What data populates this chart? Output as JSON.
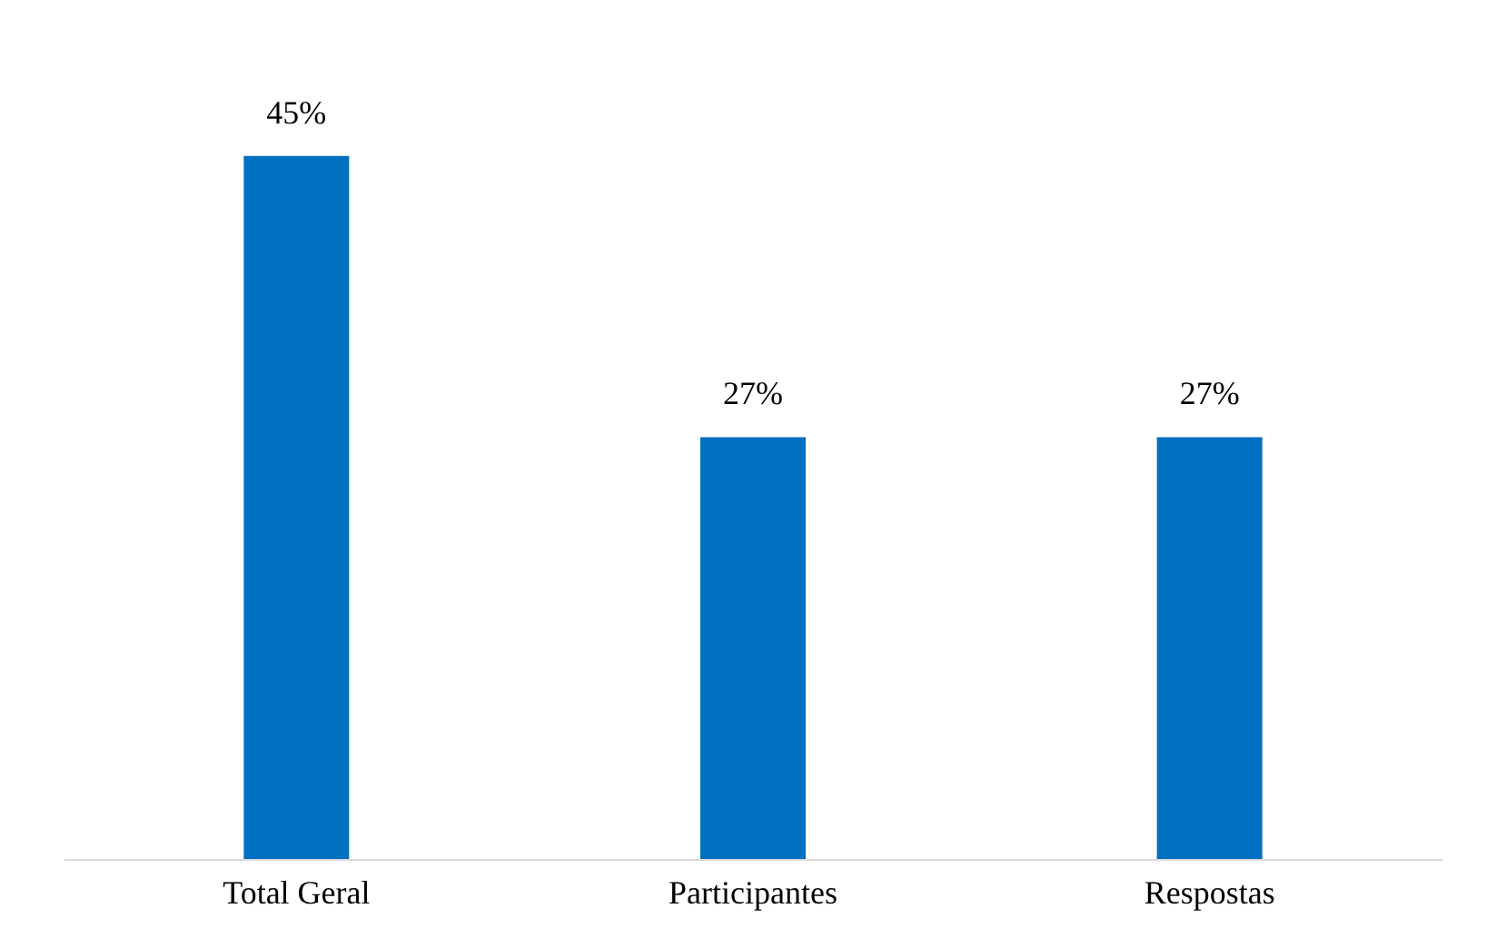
{
  "chart_data": {
    "type": "bar",
    "categories": [
      "Total Geral",
      "Participantes",
      "Respostas"
    ],
    "values": [
      45,
      27,
      27
    ],
    "value_labels": [
      "45%",
      "27%",
      "27%"
    ],
    "color": "#0070c0",
    "grid": false
  }
}
